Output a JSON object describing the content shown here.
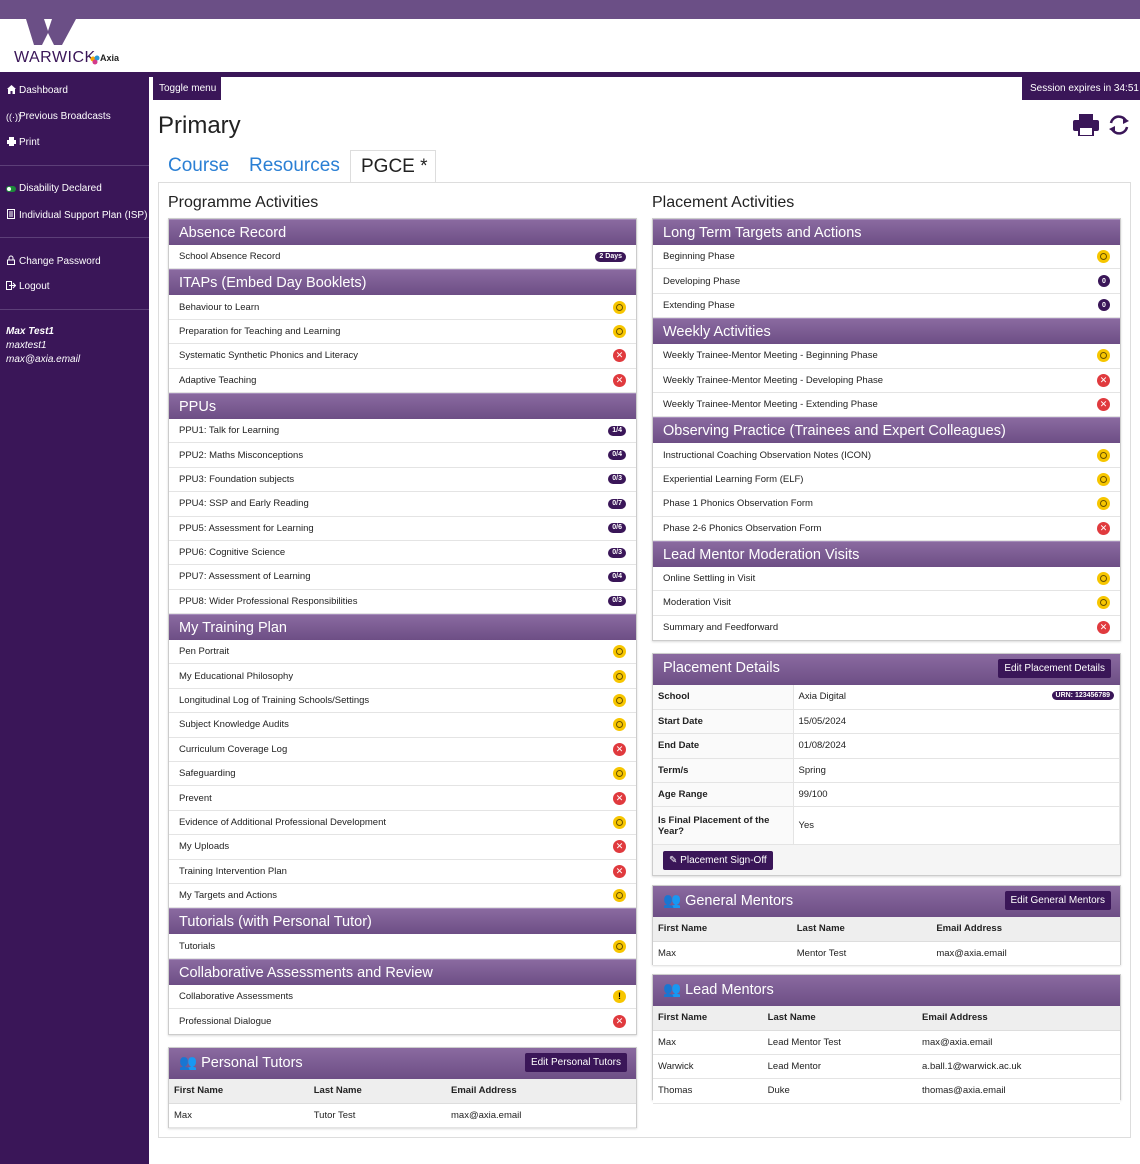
{
  "brand": {
    "logo_main": "WARWICK",
    "logo_sub": "Axia"
  },
  "sidebar": {
    "items": [
      {
        "label": "Dashboard",
        "icon": "home-icon"
      },
      {
        "label": "Previous Broadcasts",
        "icon": "broadcast-icon"
      },
      {
        "label": "Print",
        "icon": "print-icon"
      },
      {
        "label": "Disability Declared",
        "icon": "toggle-icon"
      },
      {
        "label": "Individual Support Plan (ISP)",
        "icon": "document-icon"
      },
      {
        "label": "Change Password",
        "icon": "lock-icon"
      },
      {
        "label": "Logout",
        "icon": "logout-icon"
      }
    ],
    "user": {
      "name": "Max Test1",
      "username": "maxtest1",
      "email": "max@axia.email"
    }
  },
  "header": {
    "toggle_menu": "Toggle menu",
    "session": "Session expires in 34:51",
    "title": "Primary"
  },
  "tabs": [
    {
      "label": "Course",
      "active": false
    },
    {
      "label": "Resources",
      "active": false
    },
    {
      "label": "PGCE *",
      "active": true
    }
  ],
  "left": {
    "title": "Programme Activities",
    "sections": [
      {
        "title": "Absence Record",
        "rows": [
          {
            "label": "School Absence Record",
            "status": "badge",
            "badge": "2 Days"
          }
        ]
      },
      {
        "title": "ITAPs (Embed Day Booklets)",
        "rows": [
          {
            "label": "Behaviour to Learn",
            "status": "pending"
          },
          {
            "label": "Preparation for Teaching and Learning",
            "status": "pending"
          },
          {
            "label": "Systematic Synthetic Phonics and Literacy",
            "status": "missing"
          },
          {
            "label": "Adaptive Teaching",
            "status": "missing"
          }
        ]
      },
      {
        "title": "PPUs",
        "rows": [
          {
            "label": "PPU1: Talk for Learning",
            "status": "badge",
            "badge": "1/4"
          },
          {
            "label": "PPU2: Maths Misconceptions",
            "status": "badge",
            "badge": "0/4"
          },
          {
            "label": "PPU3: Foundation subjects",
            "status": "badge",
            "badge": "0/3"
          },
          {
            "label": "PPU4: SSP and Early Reading",
            "status": "badge",
            "badge": "0/7"
          },
          {
            "label": "PPU5: Assessment for Learning",
            "status": "badge",
            "badge": "0/6"
          },
          {
            "label": "PPU6: Cognitive Science",
            "status": "badge",
            "badge": "0/3"
          },
          {
            "label": "PPU7: Assessment of Learning",
            "status": "badge",
            "badge": "0/4"
          },
          {
            "label": "PPU8: Wider Professional Responsibilities",
            "status": "badge",
            "badge": "0/3"
          }
        ]
      },
      {
        "title": "My Training Plan",
        "rows": [
          {
            "label": "Pen Portrait",
            "status": "pending"
          },
          {
            "label": "My Educational Philosophy",
            "status": "pending"
          },
          {
            "label": "Longitudinal Log of Training Schools/Settings",
            "status": "pending"
          },
          {
            "label": "Subject Knowledge Audits",
            "status": "pending"
          },
          {
            "label": "Curriculum Coverage Log",
            "status": "missing"
          },
          {
            "label": "Safeguarding",
            "status": "pending"
          },
          {
            "label": "Prevent",
            "status": "missing"
          },
          {
            "label": "Evidence of Additional Professional Development",
            "status": "pending"
          },
          {
            "label": "My Uploads",
            "status": "missing"
          },
          {
            "label": "Training Intervention Plan",
            "status": "missing"
          },
          {
            "label": "My Targets and Actions",
            "status": "pending"
          }
        ]
      },
      {
        "title": "Tutorials (with Personal Tutor)",
        "rows": [
          {
            "label": "Tutorials",
            "status": "pending"
          }
        ]
      },
      {
        "title": "Collaborative Assessments and Review",
        "rows": [
          {
            "label": "Collaborative Assessments",
            "status": "warning"
          },
          {
            "label": "Professional Dialogue",
            "status": "missing"
          }
        ]
      }
    ]
  },
  "right": {
    "title": "Placement Activities",
    "sections": [
      {
        "title": "Long Term Targets and Actions",
        "rows": [
          {
            "label": "Beginning Phase",
            "status": "pending"
          },
          {
            "label": "Developing Phase",
            "status": "zero",
            "badge": "0"
          },
          {
            "label": "Extending Phase",
            "status": "zero",
            "badge": "0"
          }
        ]
      },
      {
        "title": "Weekly Activities",
        "rows": [
          {
            "label": "Weekly Trainee-Mentor Meeting - Beginning Phase",
            "status": "pending"
          },
          {
            "label": "Weekly Trainee-Mentor Meeting - Developing Phase",
            "status": "missing"
          },
          {
            "label": "Weekly Trainee-Mentor Meeting - Extending Phase",
            "status": "missing"
          }
        ]
      },
      {
        "title": "Observing Practice (Trainees and Expert Colleagues)",
        "rows": [
          {
            "label": "Instructional Coaching Observation Notes (ICON)",
            "status": "pending"
          },
          {
            "label": "Experiential Learning Form (ELF)",
            "status": "pending"
          },
          {
            "label": "Phase 1 Phonics Observation Form",
            "status": "pending"
          },
          {
            "label": "Phase 2-6 Phonics Observation Form",
            "status": "missing"
          }
        ]
      },
      {
        "title": "Lead Mentor Moderation Visits",
        "rows": [
          {
            "label": "Online Settling in Visit",
            "status": "pending"
          },
          {
            "label": "Moderation Visit",
            "status": "pending"
          },
          {
            "label": "Summary and Feedforward",
            "status": "missing"
          }
        ]
      }
    ]
  },
  "placement": {
    "title": "Placement Details",
    "edit_label": "Edit Placement Details",
    "urn": "URN: 123456789",
    "signoff_label": "Placement Sign-Off",
    "fields": [
      {
        "label": "School",
        "value": "Axia Digital"
      },
      {
        "label": "Start Date",
        "value": "15/05/2024"
      },
      {
        "label": "End Date",
        "value": "01/08/2024"
      },
      {
        "label": "Term/s",
        "value": "Spring"
      },
      {
        "label": "Age Range",
        "value": "99/100"
      },
      {
        "label": "Is Final Placement of the Year?",
        "value": "Yes"
      }
    ]
  },
  "general_mentors": {
    "title": "General Mentors",
    "edit_label": "Edit General Mentors",
    "columns": [
      "First Name",
      "Last Name",
      "Email Address"
    ],
    "rows": [
      [
        "Max",
        "Mentor Test",
        "max@axia.email"
      ]
    ]
  },
  "lead_mentors": {
    "title": "Lead Mentors",
    "columns": [
      "First Name",
      "Last Name",
      "Email Address"
    ],
    "rows": [
      [
        "Max",
        "Lead Mentor Test",
        "max@axia.email"
      ],
      [
        "Warwick",
        "Lead Mentor",
        "a.ball.1@warwick.ac.uk"
      ],
      [
        "Thomas",
        "Duke",
        "thomas@axia.email"
      ]
    ]
  },
  "personal_tutors": {
    "title": "Personal Tutors",
    "edit_label": "Edit Personal Tutors",
    "columns": [
      "First Name",
      "Last Name",
      "Email Address"
    ],
    "rows": [
      [
        "Max",
        "Tutor Test",
        "max@axia.email"
      ]
    ]
  },
  "colors": {
    "brand": "#3a1658",
    "header": "#6d4e85",
    "pending": "#f7c600",
    "missing": "#e03a3e"
  }
}
